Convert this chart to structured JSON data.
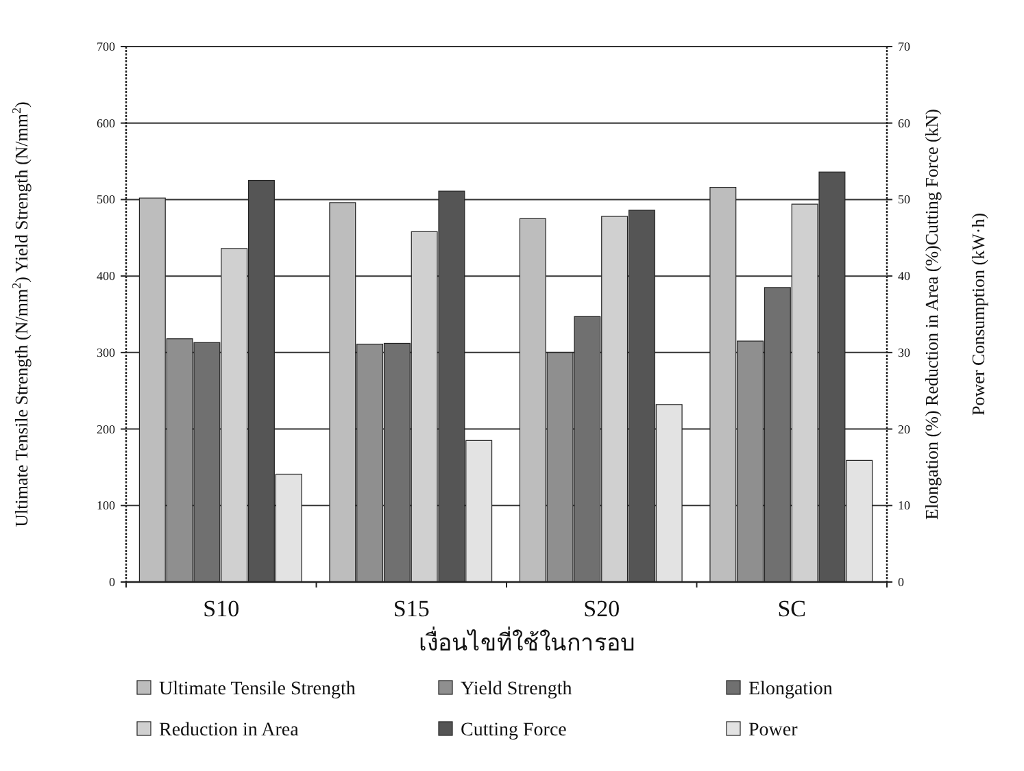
{
  "chart_data": {
    "type": "bar",
    "xlabel": "เงื่อนไขที่ใช้ในการอบ",
    "ylabel": "Ultimate Tensile Strength (N/mm$^{2}$) Yield Strength (N/mm$^{2}$)",
    "y2label": "Elongation (%)  Reduction in Area (%)Cutting Force (kN)\nPower Consumption (kW·h)",
    "categories": [
      "S10",
      "S15",
      "S20",
      "SC"
    ],
    "ylim": [
      0,
      700
    ],
    "yticks": [
      0,
      100,
      200,
      300,
      400,
      500,
      600,
      700
    ],
    "y2lim": [
      0,
      70
    ],
    "y2ticks": [
      0,
      10,
      20,
      30,
      40,
      50,
      60,
      70
    ],
    "grid": "y",
    "legend": "bottom",
    "series": [
      {
        "name": "Ultimate Tensile Strength",
        "color": "#bdbdbd",
        "values": [
          502,
          496,
          475,
          516
        ]
      },
      {
        "name": "Yield Strength",
        "color": "#8f8f8f",
        "values": [
          318,
          311,
          300,
          315
        ]
      },
      {
        "name": "Elongation",
        "color": "#707070",
        "axis": "y2",
        "values": [
          31.3,
          31.2,
          34.7,
          38.5
        ]
      },
      {
        "name": "Reduction in Area",
        "color": "#d0d0d0",
        "axis": "y2",
        "values": [
          43.6,
          45.8,
          47.8,
          49.4
        ]
      },
      {
        "name": "Cutting Force",
        "color": "#555555",
        "axis": "y2",
        "values": [
          52.5,
          51.1,
          48.6,
          53.6
        ]
      },
      {
        "name": "Power",
        "color": "#e3e3e3",
        "axis": "y2",
        "values": [
          14.1,
          18.5,
          23.2,
          15.9
        ]
      }
    ]
  }
}
